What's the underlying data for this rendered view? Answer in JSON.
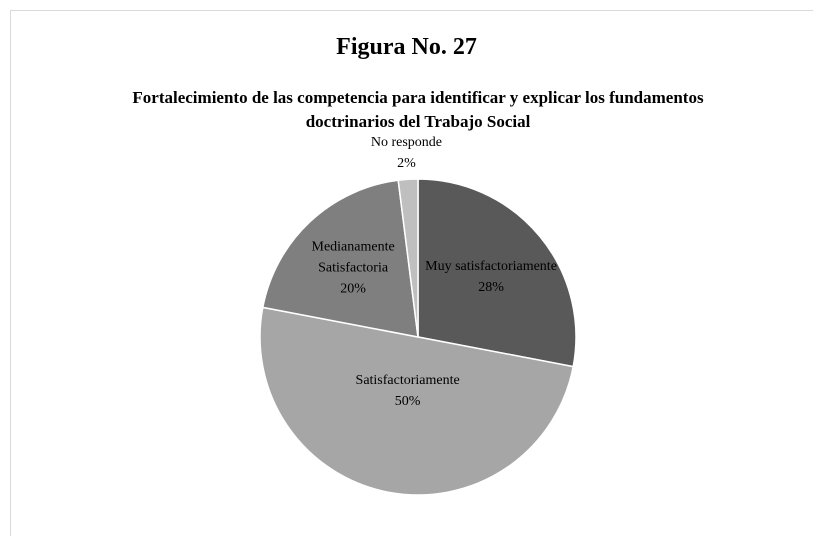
{
  "chart_data": {
    "type": "pie",
    "title": "Figura No. 27",
    "subtitle": "Fortalecimiento de las competencia para identificar y explicar los fundamentos doctrinarios del Trabajo Social",
    "categories": [
      "Muy satisfactoriamente",
      "Satisfactoriamente",
      "Medianamente Satisfactoria",
      "No responde"
    ],
    "values": [
      28,
      50,
      20,
      2
    ],
    "value_labels": [
      "28%",
      "50%",
      "20%",
      "2%"
    ],
    "colors": [
      "#595959",
      "#a6a6a6",
      "#7f7f7f",
      "#bfbfbf"
    ]
  }
}
